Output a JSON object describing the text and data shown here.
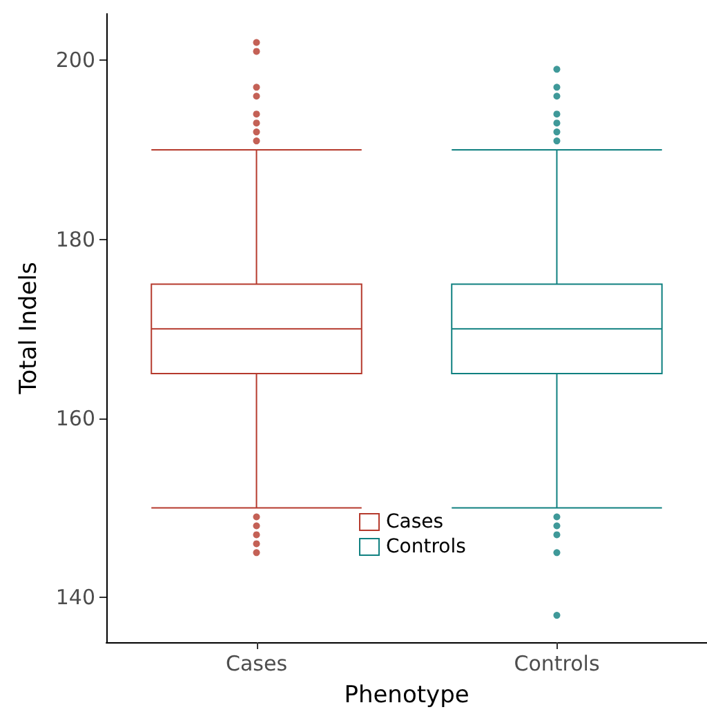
{
  "chart_data": {
    "type": "box",
    "xlabel": "Phenotype",
    "ylabel": "Total Indels",
    "categories": [
      "Cases",
      "Controls"
    ],
    "series": [
      {
        "name": "Cases",
        "color": "#b5392c",
        "boxes": [
          {
            "low": 150,
            "q1": 165,
            "median": 170,
            "q3": 175,
            "high": 190,
            "outliers": [
              202,
              201,
              197,
              196,
              194,
              193,
              192,
              191,
              149,
              148,
              147,
              146,
              145
            ]
          },
          null
        ]
      },
      {
        "name": "Controls",
        "color": "#0f8080",
        "boxes": [
          null,
          {
            "low": 150,
            "q1": 165,
            "median": 170,
            "q3": 175,
            "high": 190,
            "outliers": [
              199,
              197,
              196,
              194,
              193,
              192,
              191,
              149,
              148,
              147,
              145,
              138
            ]
          }
        ]
      }
    ],
    "ylim": [
      135,
      205.2
    ],
    "yticks": [
      140,
      160,
      180,
      200
    ],
    "grid": false,
    "legend": "bottom"
  }
}
